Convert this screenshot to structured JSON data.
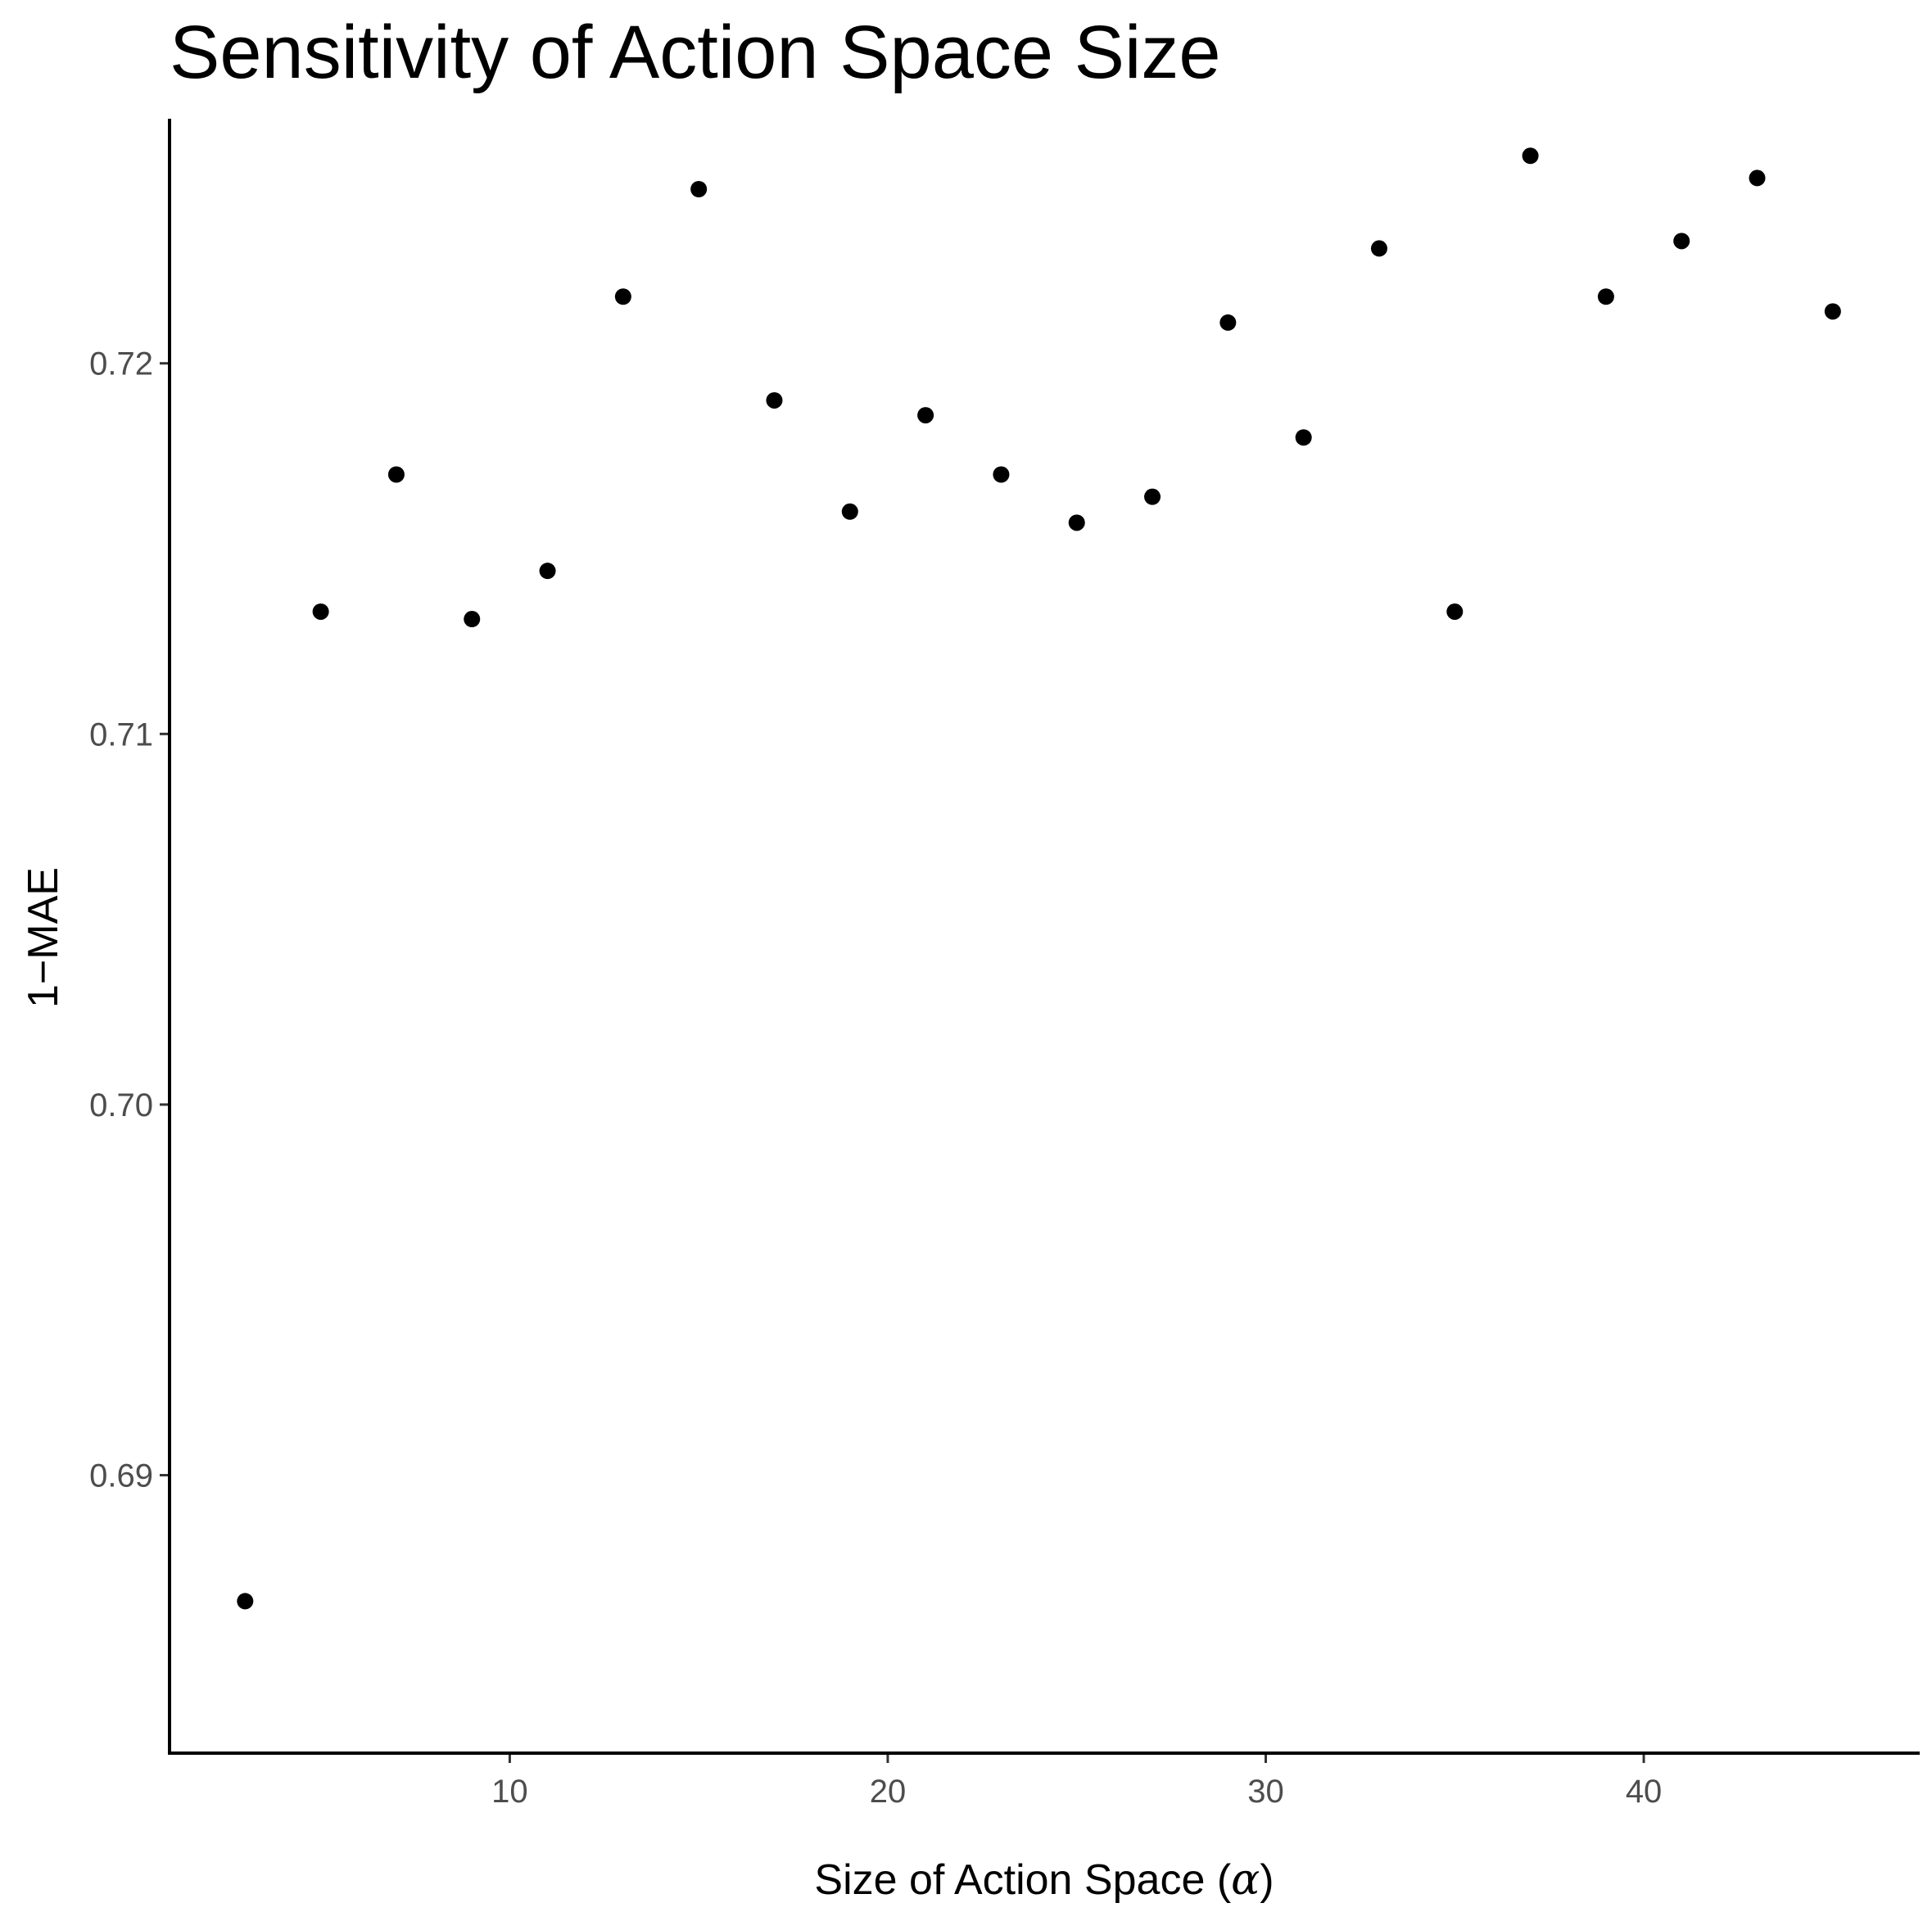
{
  "chart_data": {
    "type": "scatter",
    "title": "Sensitivity of Action Space Size",
    "xlabel_prefix": "Size of Action Space (",
    "xlabel_symbol": "α",
    "xlabel_suffix": ")",
    "ylabel": "1−MAE",
    "xlim": [
      1,
      47.3
    ],
    "ylim": [
      0.6825,
      0.7266
    ],
    "x_ticks": [
      10,
      20,
      30,
      40
    ],
    "x_tick_labels": [
      "10",
      "20",
      "30",
      "40"
    ],
    "y_ticks": [
      0.69,
      0.7,
      0.71,
      0.72
    ],
    "y_tick_labels": [
      "0.69",
      "0.70",
      "0.71",
      "0.72"
    ],
    "grid": false,
    "point_color": "#000000",
    "points": [
      {
        "x": 3,
        "y": 0.6866
      },
      {
        "x": 5,
        "y": 0.7133
      },
      {
        "x": 7,
        "y": 0.717
      },
      {
        "x": 9,
        "y": 0.7131
      },
      {
        "x": 11,
        "y": 0.7144
      },
      {
        "x": 13,
        "y": 0.7218
      },
      {
        "x": 15,
        "y": 0.7247
      },
      {
        "x": 17,
        "y": 0.719
      },
      {
        "x": 19,
        "y": 0.716
      },
      {
        "x": 21,
        "y": 0.7186
      },
      {
        "x": 23,
        "y": 0.717
      },
      {
        "x": 25,
        "y": 0.7157
      },
      {
        "x": 27,
        "y": 0.7164
      },
      {
        "x": 29,
        "y": 0.7211
      },
      {
        "x": 31,
        "y": 0.718
      },
      {
        "x": 33,
        "y": 0.7231
      },
      {
        "x": 35,
        "y": 0.7133
      },
      {
        "x": 37,
        "y": 0.7256
      },
      {
        "x": 39,
        "y": 0.7218
      },
      {
        "x": 41,
        "y": 0.7233
      },
      {
        "x": 43,
        "y": 0.725
      },
      {
        "x": 45,
        "y": 0.7214
      }
    ]
  }
}
